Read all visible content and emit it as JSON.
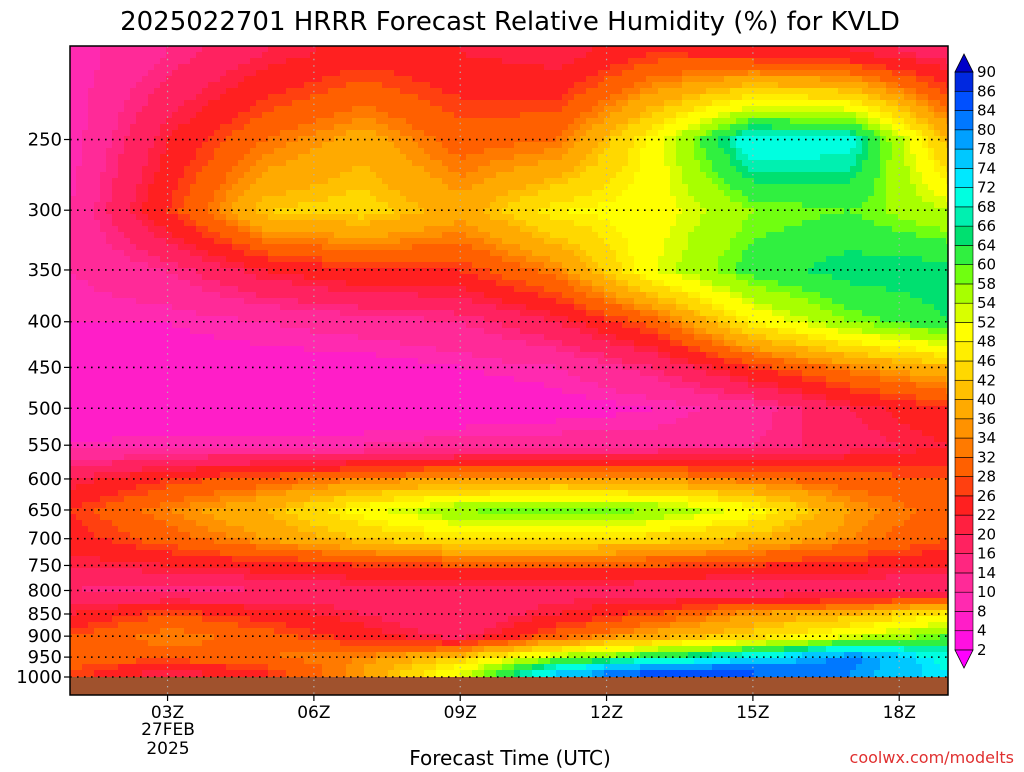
{
  "chart_data": {
    "type": "heatmap",
    "title": "2025022701 HRRR Forecast Relative Humidity (%) for KVLD",
    "xlabel": "Forecast Time (UTC)",
    "ylabel": "",
    "credit": "coolwx.com/modelts",
    "x_ticks": [
      "03Z",
      "06Z",
      "09Z",
      "12Z",
      "15Z",
      "18Z"
    ],
    "x_tick_hours": [
      3,
      6,
      9,
      12,
      15,
      18
    ],
    "x_date_lines": [
      "27FEB",
      "2025"
    ],
    "x_range_hours": [
      1,
      19
    ],
    "y_ticks": [
      250,
      300,
      350,
      400,
      450,
      500,
      550,
      600,
      650,
      700,
      750,
      800,
      850,
      900,
      950,
      1000
    ],
    "y_range_hpa": [
      200,
      1000
    ],
    "y_scale": "log-pressure",
    "grid": true,
    "colorbar": {
      "placement": "right",
      "levels": [
        2,
        4,
        8,
        10,
        14,
        16,
        20,
        22,
        26,
        28,
        32,
        34,
        36,
        40,
        42,
        46,
        48,
        52,
        54,
        58,
        60,
        64,
        66,
        68,
        72,
        74,
        78,
        80,
        84,
        86,
        90
      ],
      "colors": [
        "#ff00ff",
        "#ff10e0",
        "#ff1ec8",
        "#ff2ab0",
        "#ff2a98",
        "#ff2680",
        "#ff2260",
        "#ff2040",
        "#ff2020",
        "#ff4010",
        "#ff6000",
        "#ff7a00",
        "#ff9200",
        "#ffaa00",
        "#ffc000",
        "#ffd800",
        "#ffee00",
        "#ffff00",
        "#d8ff00",
        "#a8ff00",
        "#70ff10",
        "#30f040",
        "#00e070",
        "#00f0b0",
        "#00ffe0",
        "#00e8ff",
        "#00c8ff",
        "#00a0ff",
        "#0078ff",
        "#0050ff",
        "#0028e0",
        "#0000c8"
      ]
    },
    "ground_color": "#a0522d",
    "rh_grid": {
      "hours": [
        1,
        3,
        5,
        7,
        9,
        11,
        13,
        15,
        17,
        19
      ],
      "pressures": [
        200,
        250,
        300,
        350,
        400,
        450,
        500,
        550,
        600,
        650,
        700,
        750,
        800,
        850,
        900,
        950,
        985
      ],
      "values": [
        [
          8,
          14,
          20,
          24,
          22,
          20,
          26,
          24,
          22,
          18
        ],
        [
          8,
          22,
          32,
          38,
          30,
          32,
          50,
          72,
          70,
          40
        ],
        [
          10,
          26,
          42,
          44,
          38,
          48,
          50,
          58,
          60,
          54
        ],
        [
          10,
          14,
          22,
          26,
          26,
          34,
          52,
          62,
          66,
          66
        ],
        [
          8,
          8,
          10,
          12,
          14,
          20,
          30,
          48,
          58,
          64
        ],
        [
          6,
          6,
          6,
          6,
          8,
          10,
          16,
          26,
          34,
          40
        ],
        [
          4,
          4,
          4,
          4,
          4,
          6,
          8,
          12,
          20,
          26
        ],
        [
          8,
          10,
          10,
          10,
          12,
          12,
          12,
          14,
          18,
          22
        ],
        [
          20,
          26,
          30,
          34,
          36,
          36,
          36,
          32,
          30,
          28
        ],
        [
          26,
          34,
          40,
          50,
          58,
          60,
          58,
          50,
          36,
          30
        ],
        [
          24,
          30,
          36,
          42,
          46,
          46,
          44,
          40,
          34,
          28
        ],
        [
          20,
          22,
          24,
          26,
          28,
          28,
          28,
          26,
          24,
          22
        ],
        [
          16,
          14,
          16,
          18,
          18,
          18,
          16,
          16,
          16,
          16
        ],
        [
          22,
          28,
          24,
          20,
          16,
          22,
          28,
          36,
          40,
          48
        ],
        [
          28,
          34,
          30,
          24,
          18,
          30,
          38,
          44,
          52,
          60
        ],
        [
          30,
          30,
          32,
          34,
          42,
          56,
          64,
          72,
          82,
          70
        ],
        [
          28,
          20,
          26,
          36,
          52,
          74,
          86,
          84,
          80,
          72
        ]
      ]
    }
  }
}
